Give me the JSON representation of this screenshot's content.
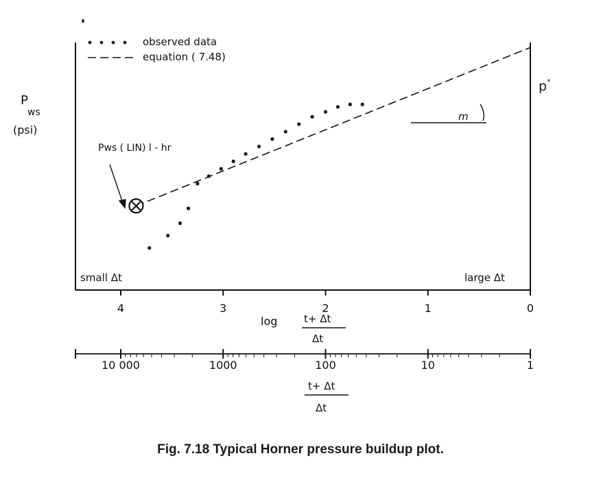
{
  "chart_data": {
    "type": "scatter",
    "title": "",
    "ylabel": {
      "main": "P",
      "sub": "ws",
      "units": "(psi)"
    },
    "x_reversed": true,
    "xlim": [
      4.3,
      0
    ],
    "ylim": [
      0,
      100
    ],
    "top_axis": {
      "label": "log",
      "fraction_numerator": "t+ Δt",
      "fraction_denominator": "Δt",
      "ticks": [
        {
          "value": 4,
          "label": "4"
        },
        {
          "value": 3,
          "label": "3"
        },
        {
          "value": 2,
          "label": "2"
        },
        {
          "value": 1,
          "label": "1"
        },
        {
          "value": 0,
          "label": "0"
        }
      ]
    },
    "bottom_axis": {
      "fraction_numerator": "t+ Δt",
      "fraction_denominator": "Δt",
      "ticks": [
        {
          "value": 4,
          "label": "10 000"
        },
        {
          "value": 3,
          "label": "1000"
        },
        {
          "value": 2,
          "label": "100"
        },
        {
          "value": 1,
          "label": "10"
        },
        {
          "value": 0,
          "label": "1"
        }
      ]
    },
    "legend": {
      "placement": "top-left",
      "entries": [
        {
          "name": "observed data",
          "style": "dots"
        },
        {
          "name": "equation ( 7.48)",
          "style": "dashed"
        }
      ]
    },
    "series": [
      {
        "name": "observed data",
        "x": [
          3.72,
          3.54,
          3.42,
          3.34,
          3.25,
          3.14,
          3.02,
          2.9,
          2.78,
          2.65,
          2.52,
          2.39,
          2.26,
          2.13,
          2.0,
          1.88,
          1.76,
          1.64
        ],
        "y": [
          17,
          22,
          27,
          33,
          43,
          46,
          49,
          52,
          55,
          58,
          61,
          64,
          67,
          70,
          72,
          74,
          75,
          75
        ]
      },
      {
        "name": "equation ( 7.48)",
        "x": [
          3.85,
          0
        ],
        "y": [
          34,
          98
        ]
      }
    ],
    "annotations": {
      "left_region": "small Δt",
      "right_region": "large Δt",
      "p_star": "p*",
      "slope": "m",
      "point_label": "Pws ( LIN) l - hr"
    },
    "grid": false
  },
  "caption": "Fig. 7.18 Typical Horner pressure buildup plot."
}
